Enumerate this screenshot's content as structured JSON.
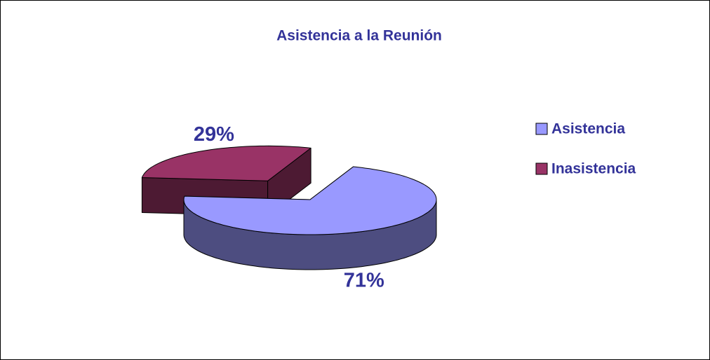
{
  "chart_data": {
    "type": "pie",
    "title": "Asistencia a la Reunión",
    "categories": [
      "Asistencia",
      "Inasistencia"
    ],
    "values": [
      71,
      29
    ],
    "value_labels": [
      "71%",
      "29%"
    ],
    "colors": [
      "#9999ff",
      "#993366"
    ],
    "legend": "right"
  }
}
